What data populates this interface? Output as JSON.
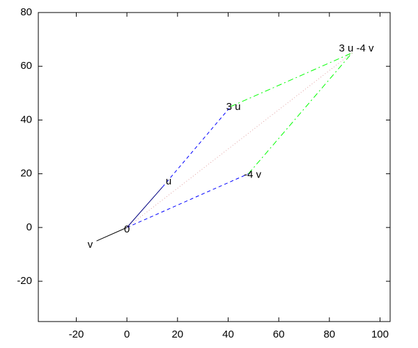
{
  "chart_data": {
    "type": "vector",
    "xlim": [
      -35,
      104
    ],
    "ylim": [
      -35,
      80
    ],
    "xticks": [
      -20,
      0,
      20,
      40,
      60,
      80,
      100
    ],
    "yticks": [
      -20,
      0,
      20,
      40,
      60,
      80
    ],
    "points": [
      {
        "label": "0",
        "x": 0,
        "y": 0
      },
      {
        "label": "u",
        "x": 14,
        "y": 15
      },
      {
        "label": "v",
        "x": -12,
        "y": -5
      },
      {
        "label": "3 u",
        "x": 41,
        "y": 45
      },
      {
        "label": "-4 v",
        "x": 48,
        "y": 20
      },
      {
        "label": "3 u -4 v",
        "x": 89,
        "y": 65
      }
    ],
    "segments": [
      {
        "x": [
          0,
          14
        ],
        "y": [
          0,
          15
        ],
        "color": "#000080",
        "style": "solid"
      },
      {
        "x": [
          0,
          -12
        ],
        "y": [
          0,
          -5
        ],
        "color": "#000000",
        "style": "solid"
      },
      {
        "x": [
          14,
          41
        ],
        "y": [
          15,
          45
        ],
        "color": "#0000ff",
        "style": "dashed"
      },
      {
        "x": [
          0,
          48
        ],
        "y": [
          0,
          20
        ],
        "color": "#0000ff",
        "style": "dashed"
      },
      {
        "x": [
          41,
          89
        ],
        "y": [
          45,
          65
        ],
        "color": "#00ff00",
        "style": "dashdot"
      },
      {
        "x": [
          48,
          89
        ],
        "y": [
          20,
          65
        ],
        "color": "#00ff00",
        "style": "dashdot"
      },
      {
        "x": [
          0,
          89
        ],
        "y": [
          0,
          65
        ],
        "color": "#e0a0a0",
        "style": "dotted"
      }
    ]
  }
}
